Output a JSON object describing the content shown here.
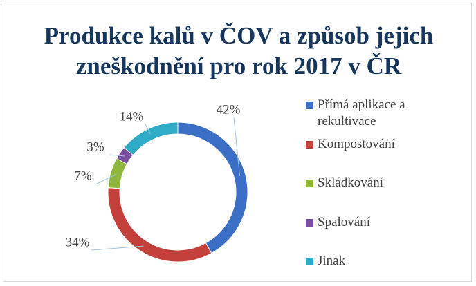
{
  "chart_data": {
    "type": "donut",
    "title": "Produkce kalů v ČOV a způsob jejich zneškodnění pro rok 2017 v ČR",
    "categories": [
      "Přímá aplikace a rekultivace",
      "Kompostování",
      "Skládkování",
      "Spalování",
      "Jinak"
    ],
    "values": [
      42,
      34,
      7,
      3,
      14
    ],
    "value_labels": [
      "42%",
      "34%",
      "7%",
      "3%",
      "14%"
    ],
    "colors": [
      "#3b6fc6",
      "#c4403a",
      "#8fb73e",
      "#7a4f9f",
      "#2fabc8"
    ],
    "legend": "right"
  }
}
